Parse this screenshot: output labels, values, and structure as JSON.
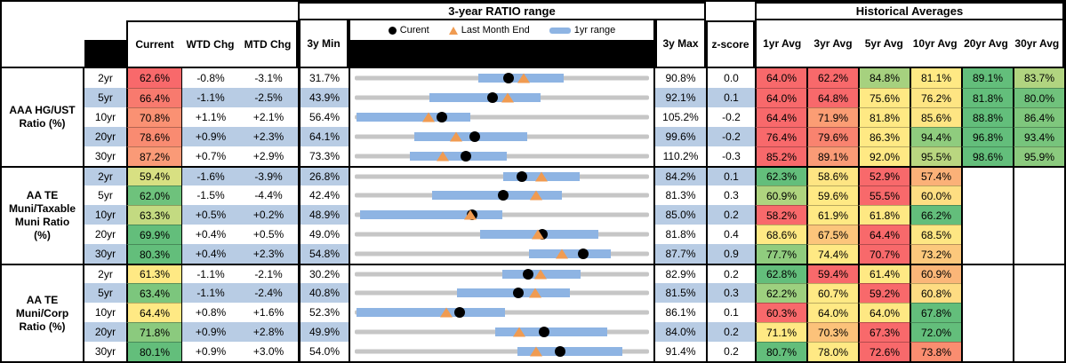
{
  "titles": {
    "range": "3-year RATIO range",
    "historical": "Historical Averages"
  },
  "legend": {
    "current": "Curent",
    "last_month_end": "Last Month End",
    "range_1yr": "1yr range"
  },
  "columns": {
    "current": "Current",
    "wtd": "WTD Chg",
    "mtd": "MTD Chg",
    "min3y": "3y Min",
    "max3y": "3y Max",
    "zscore": "z-score",
    "averages": [
      "1yr Avg",
      "3yr Avg",
      "5yr Avg",
      "10yr Avg",
      "20yr Avg",
      "30yr Avg"
    ]
  },
  "colors": {
    "stripe": "#B8CCE4",
    "track": "#C6C6C6",
    "range_bar": "#8EB4E3",
    "marker_dot": "#000000",
    "marker_triangle": "#F09B51",
    "scale_red": "#F8696B",
    "scale_yellow": "#FFE984",
    "scale_green": "#63BE7B"
  },
  "chart_data": {
    "type": "table",
    "legend_series": [
      "Curent",
      "Last Month End",
      "1yr range"
    ],
    "groups": [
      {
        "label": "AAA HG/UST Ratio (%)",
        "label_lines": [
          "AAA HG/UST",
          "Ratio (%)"
        ],
        "rows": [
          {
            "tenor": "2yr",
            "current": "62.6%",
            "current_bg": "#F8696B",
            "wtd": "-0.8%",
            "mtd": "-3.1%",
            "min3y": "31.7%",
            "max3y": "90.8%",
            "zscore": "0.0",
            "plot": {
              "min": 31.7,
              "max": 90.8,
              "current": 62.6,
              "last_month_end": 65.7,
              "range_1yr": [
                56.5,
                73.7
              ]
            },
            "averages": [
              {
                "v": "64.0%",
                "bg": "#F8696B"
              },
              {
                "v": "62.2%",
                "bg": "#F8696B"
              },
              {
                "v": "84.8%",
                "bg": "#A6D17F"
              },
              {
                "v": "81.1%",
                "bg": "#FFE984"
              },
              {
                "v": "89.1%",
                "bg": "#63BE7B"
              },
              {
                "v": "83.7%",
                "bg": "#B1D480"
              }
            ]
          },
          {
            "tenor": "5yr",
            "current": "66.4%",
            "current_bg": "#F87A6E",
            "wtd": "-1.1%",
            "mtd": "-2.5%",
            "min3y": "43.9%",
            "max3y": "92.1%",
            "zscore": "0.1",
            "plot": {
              "min": 43.9,
              "max": 92.1,
              "current": 66.4,
              "last_month_end": 68.9,
              "range_1yr": [
                56.2,
                74.4
              ]
            },
            "averages": [
              {
                "v": "64.0%",
                "bg": "#F8696B"
              },
              {
                "v": "64.8%",
                "bg": "#F8696B"
              },
              {
                "v": "75.6%",
                "bg": "#FFE984"
              },
              {
                "v": "76.2%",
                "bg": "#FEE583"
              },
              {
                "v": "81.8%",
                "bg": "#63BE7B"
              },
              {
                "v": "80.0%",
                "bg": "#70C27C"
              }
            ]
          },
          {
            "tenor": "10yr",
            "current": "70.8%",
            "current_bg": "#FA9173",
            "wtd": "+1.1%",
            "mtd": "+2.1%",
            "min3y": "56.4%",
            "max3y": "105.2%",
            "zscore": "-0.2",
            "plot": {
              "min": 56.4,
              "max": 105.2,
              "current": 70.8,
              "last_month_end": 68.7,
              "range_1yr": [
                56.7,
                75.6
              ]
            },
            "averages": [
              {
                "v": "64.4%",
                "bg": "#F8696B"
              },
              {
                "v": "71.9%",
                "bg": "#FB9D74"
              },
              {
                "v": "81.8%",
                "bg": "#FFE984"
              },
              {
                "v": "85.6%",
                "bg": "#FEE583"
              },
              {
                "v": "88.8%",
                "bg": "#63BE7B"
              },
              {
                "v": "86.4%",
                "bg": "#7FC77D"
              }
            ]
          },
          {
            "tenor": "20yr",
            "current": "78.6%",
            "current_bg": "#F98B71",
            "wtd": "+0.9%",
            "mtd": "+2.3%",
            "min3y": "64.1%",
            "max3y": "99.6%",
            "zscore": "-0.2",
            "plot": {
              "min": 64.1,
              "max": 99.6,
              "current": 78.6,
              "last_month_end": 76.3,
              "range_1yr": [
                71.3,
                84.9
              ]
            },
            "averages": [
              {
                "v": "76.4%",
                "bg": "#F8696B"
              },
              {
                "v": "79.6%",
                "bg": "#F9836F"
              },
              {
                "v": "86.3%",
                "bg": "#FFE984"
              },
              {
                "v": "94.4%",
                "bg": "#8FCC7E"
              },
              {
                "v": "96.8%",
                "bg": "#63BE7B"
              },
              {
                "v": "93.4%",
                "bg": "#77C47C"
              }
            ]
          },
          {
            "tenor": "30yr",
            "current": "87.2%",
            "current_bg": "#FA9A77",
            "wtd": "+0.7%",
            "mtd": "+2.9%",
            "min3y": "73.3%",
            "max3y": "110.2%",
            "zscore": "-0.3",
            "plot": {
              "min": 73.3,
              "max": 110.2,
              "current": 87.2,
              "last_month_end": 84.3,
              "range_1yr": [
                80.2,
                92.4
              ]
            },
            "averages": [
              {
                "v": "85.2%",
                "bg": "#F8696B"
              },
              {
                "v": "89.1%",
                "bg": "#FA9B76"
              },
              {
                "v": "92.0%",
                "bg": "#FFE984"
              },
              {
                "v": "95.5%",
                "bg": "#B9D680"
              },
              {
                "v": "98.6%",
                "bg": "#63BE7B"
              },
              {
                "v": "95.9%",
                "bg": "#8BCA7E"
              }
            ]
          }
        ]
      },
      {
        "label": "AA TE Muni/Taxable Muni Ratio (%)",
        "label_lines": [
          "AA TE",
          "Muni/Taxable",
          "Muni Ratio",
          "(%)"
        ],
        "rows": [
          {
            "tenor": "2yr",
            "current": "59.4%",
            "current_bg": "#D8E082",
            "wtd": "-1.6%",
            "mtd": "-3.9%",
            "min3y": "26.8%",
            "max3y": "84.2%",
            "zscore": "0.1",
            "plot": {
              "min": 26.8,
              "max": 84.2,
              "current": 59.4,
              "last_month_end": 63.3,
              "range_1yr": [
                55.7,
                70.7
              ]
            },
            "averages": [
              {
                "v": "62.3%",
                "bg": "#63BE7B"
              },
              {
                "v": "58.6%",
                "bg": "#FEE583"
              },
              {
                "v": "52.9%",
                "bg": "#F8696B"
              },
              {
                "v": "57.4%",
                "bg": "#FBB178"
              }
            ]
          },
          {
            "tenor": "5yr",
            "current": "62.0%",
            "current_bg": "#6EC27C",
            "wtd": "-1.5%",
            "mtd": "-4.4%",
            "min3y": "42.4%",
            "max3y": "81.3%",
            "zscore": "0.3",
            "plot": {
              "min": 42.4,
              "max": 81.3,
              "current": 62.0,
              "last_month_end": 66.4,
              "range_1yr": [
                52.6,
                69.8
              ]
            },
            "averages": [
              {
                "v": "60.9%",
                "bg": "#AED47F"
              },
              {
                "v": "59.6%",
                "bg": "#FFE984"
              },
              {
                "v": "55.5%",
                "bg": "#F8696B"
              },
              {
                "v": "60.0%",
                "bg": "#FEDE82"
              }
            ]
          },
          {
            "tenor": "10yr",
            "current": "63.3%",
            "current_bg": "#C3DA81",
            "wtd": "+0.5%",
            "mtd": "+0.2%",
            "min3y": "48.9%",
            "max3y": "85.0%",
            "zscore": "0.2",
            "plot": {
              "min": 48.9,
              "max": 85.0,
              "current": 63.3,
              "last_month_end": 63.1,
              "range_1yr": [
                49.5,
                67.0
              ]
            },
            "averages": [
              {
                "v": "58.2%",
                "bg": "#F8696B"
              },
              {
                "v": "61.9%",
                "bg": "#FFE984"
              },
              {
                "v": "61.8%",
                "bg": "#FEE883"
              },
              {
                "v": "66.2%",
                "bg": "#63BE7B"
              }
            ]
          },
          {
            "tenor": "20yr",
            "current": "69.9%",
            "current_bg": "#63BE7B",
            "wtd": "+0.4%",
            "mtd": "+0.5%",
            "min3y": "49.0%",
            "max3y": "81.8%",
            "zscore": "0.4",
            "plot": {
              "min": 49.0,
              "max": 81.8,
              "current": 69.9,
              "last_month_end": 69.4,
              "range_1yr": [
                63.0,
                76.2
              ]
            },
            "averages": [
              {
                "v": "68.6%",
                "bg": "#FFE984"
              },
              {
                "v": "67.5%",
                "bg": "#FCC57B"
              },
              {
                "v": "64.4%",
                "bg": "#F8696B"
              },
              {
                "v": "68.5%",
                "bg": "#FEE683"
              }
            ]
          },
          {
            "tenor": "30yr",
            "current": "80.3%",
            "current_bg": "#63BE7B",
            "wtd": "+0.4%",
            "mtd": "+2.3%",
            "min3y": "54.8%",
            "max3y": "87.7%",
            "zscore": "0.9",
            "plot": {
              "min": 54.8,
              "max": 87.7,
              "current": 80.3,
              "last_month_end": 78.0,
              "range_1yr": [
                74.3,
                83.4
              ]
            },
            "averages": [
              {
                "v": "77.7%",
                "bg": "#90CC7E"
              },
              {
                "v": "74.4%",
                "bg": "#FFE984"
              },
              {
                "v": "70.7%",
                "bg": "#F8696B"
              },
              {
                "v": "73.2%",
                "bg": "#FCC87C"
              }
            ]
          }
        ]
      },
      {
        "label": "AA TE Muni/Corp Ratio (%)",
        "label_lines": [
          "AA TE",
          "Muni/Corp",
          "Ratio (%)"
        ],
        "rows": [
          {
            "tenor": "2yr",
            "current": "61.3%",
            "current_bg": "#FFE984",
            "wtd": "-1.1%",
            "mtd": "-2.1%",
            "min3y": "30.2%",
            "max3y": "82.9%",
            "zscore": "0.2",
            "plot": {
              "min": 30.2,
              "max": 82.9,
              "current": 61.3,
              "last_month_end": 63.4,
              "range_1yr": [
                56.6,
                70.7
              ]
            },
            "averages": [
              {
                "v": "62.8%",
                "bg": "#63BE7B"
              },
              {
                "v": "59.4%",
                "bg": "#F8696B"
              },
              {
                "v": "61.4%",
                "bg": "#FFE984"
              },
              {
                "v": "60.9%",
                "bg": "#FBB678"
              }
            ]
          },
          {
            "tenor": "5yr",
            "current": "63.4%",
            "current_bg": "#7CC67D",
            "wtd": "-1.1%",
            "mtd": "-2.4%",
            "min3y": "40.8%",
            "max3y": "81.5%",
            "zscore": "0.3",
            "plot": {
              "min": 40.8,
              "max": 81.5,
              "current": 63.4,
              "last_month_end": 65.8,
              "range_1yr": [
                54.9,
                70.5
              ]
            },
            "averages": [
              {
                "v": "62.2%",
                "bg": "#9DD07F"
              },
              {
                "v": "60.7%",
                "bg": "#FFE984"
              },
              {
                "v": "59.2%",
                "bg": "#F8696B"
              },
              {
                "v": "60.8%",
                "bg": "#FEDC82"
              }
            ]
          },
          {
            "tenor": "10yr",
            "current": "64.4%",
            "current_bg": "#FFE984",
            "wtd": "+0.8%",
            "mtd": "+1.6%",
            "min3y": "52.3%",
            "max3y": "86.1%",
            "zscore": "0.1",
            "plot": {
              "min": 52.3,
              "max": 86.1,
              "current": 64.4,
              "last_month_end": 62.8,
              "range_1yr": [
                52.5,
                69.6
              ]
            },
            "averages": [
              {
                "v": "60.3%",
                "bg": "#F8696B"
              },
              {
                "v": "64.0%",
                "bg": "#FFE984"
              },
              {
                "v": "64.0%",
                "bg": "#FEE883"
              },
              {
                "v": "67.8%",
                "bg": "#63BE7B"
              }
            ]
          },
          {
            "tenor": "20yr",
            "current": "71.8%",
            "current_bg": "#8BCA7E",
            "wtd": "+0.9%",
            "mtd": "+2.8%",
            "min3y": "49.9%",
            "max3y": "84.0%",
            "zscore": "0.2",
            "plot": {
              "min": 49.9,
              "max": 84.0,
              "current": 71.8,
              "last_month_end": 69.0,
              "range_1yr": [
                66.2,
                79.2
              ]
            },
            "averages": [
              {
                "v": "71.1%",
                "bg": "#FFE984"
              },
              {
                "v": "70.3%",
                "bg": "#FCC27A"
              },
              {
                "v": "67.3%",
                "bg": "#F8696B"
              },
              {
                "v": "72.0%",
                "bg": "#63BE7B"
              }
            ]
          },
          {
            "tenor": "30yr",
            "current": "80.1%",
            "current_bg": "#63BE7B",
            "wtd": "+0.9%",
            "mtd": "+3.0%",
            "min3y": "54.0%",
            "max3y": "91.4%",
            "zscore": "0.2",
            "plot": {
              "min": 54.0,
              "max": 91.4,
              "current": 80.1,
              "last_month_end": 77.1,
              "range_1yr": [
                74.7,
                88.0
              ]
            },
            "averages": [
              {
                "v": "80.7%",
                "bg": "#63BE7B"
              },
              {
                "v": "78.0%",
                "bg": "#FFE984"
              },
              {
                "v": "72.6%",
                "bg": "#F8696B"
              },
              {
                "v": "73.8%",
                "bg": "#FA8D70"
              }
            ]
          }
        ]
      }
    ]
  }
}
